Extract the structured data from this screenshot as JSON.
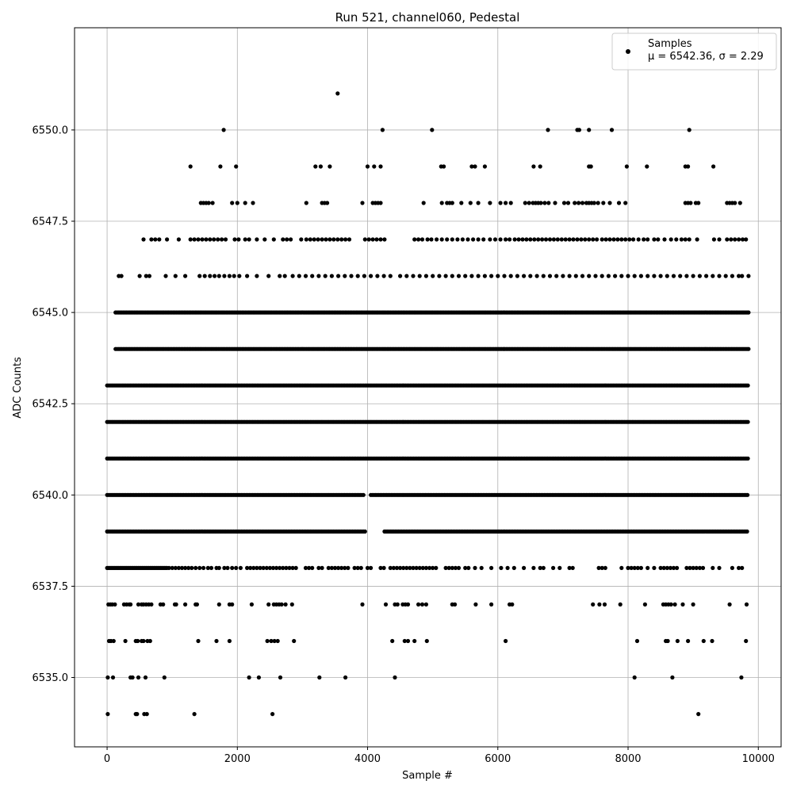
{
  "chart_data": {
    "type": "scatter",
    "title": "Run 521, channel060, Pedestal",
    "xlabel": "Sample #",
    "ylabel": "ADC Counts",
    "xlim": [
      -500,
      10350
    ],
    "ylim": [
      6533.1,
      6552.8
    ],
    "x_ticks": [
      0,
      2000,
      4000,
      6000,
      8000,
      10000
    ],
    "x_tick_labels": [
      "0",
      "2000",
      "4000",
      "6000",
      "8000",
      "10000"
    ],
    "y_ticks": [
      6535.0,
      6537.5,
      6540.0,
      6542.5,
      6545.0,
      6547.5,
      6550.0
    ],
    "y_tick_labels": [
      "6535.0",
      "6537.5",
      "6540.0",
      "6542.5",
      "6545.0",
      "6547.5",
      "6550.0"
    ],
    "grid": true,
    "legend_position": "top-right",
    "series": [
      {
        "name": "Samples",
        "marker_color": "#000000",
        "stats_label": "μ = 6542.36, σ = 2.29",
        "n_samples": 9850,
        "points": {
          "6534": [
            10,
            440,
            460,
            570,
            610,
            1340,
            2540,
            9080
          ],
          "6535": [
            10,
            90,
            360,
            390,
            480,
            590,
            880,
            2180,
            2330,
            2660,
            3260,
            3660,
            4420,
            8100,
            8680,
            9740
          ],
          "6536": [
            30,
            60,
            100,
            280,
            440,
            470,
            530,
            560,
            620,
            660,
            1400,
            1680,
            1880,
            2460,
            2520,
            2570,
            2620,
            2870,
            4380,
            4570,
            4620,
            4720,
            4910,
            6120,
            8140,
            8580,
            8610,
            8760,
            8920,
            9160,
            9290,
            9810
          ],
          "6537": [
            20,
            50,
            80,
            120,
            260,
            300,
            340,
            360,
            480,
            530,
            560,
            600,
            640,
            680,
            820,
            860,
            1040,
            1060,
            1200,
            1360,
            1380,
            1720,
            1880,
            1920,
            2220,
            2480,
            2560,
            2600,
            2640,
            2680,
            2740,
            2840,
            3920,
            4280,
            4420,
            4460,
            4540,
            4580,
            4620,
            4780,
            4840,
            4900,
            5300,
            5340,
            5660,
            5900,
            6180,
            6220,
            7460,
            7560,
            7640,
            7880,
            8260,
            8540,
            8580,
            8620,
            8660,
            8720,
            8840,
            9000,
            9560,
            9820
          ],
          "6538": [
            0,
            20,
            40,
            60,
            80,
            100,
            120,
            140,
            160,
            180,
            200,
            220,
            240,
            260,
            280,
            300,
            320,
            340,
            360,
            380,
            400,
            420,
            440,
            460,
            480,
            500,
            520,
            540,
            560,
            580,
            600,
            620,
            640,
            660,
            680,
            700,
            720,
            740,
            760,
            780,
            800,
            820,
            840,
            860,
            880,
            900,
            920,
            950,
            1000,
            1050,
            1100,
            1150,
            1200,
            1250,
            1300,
            1360,
            1420,
            1480,
            1550,
            1600,
            1680,
            1720,
            1800,
            1850,
            1920,
            1980,
            2050,
            2150,
            2200,
            2250,
            2300,
            2350,
            2400,
            2450,
            2500,
            2550,
            2600,
            2650,
            2700,
            2750,
            2800,
            2850,
            2900,
            3050,
            3100,
            3150,
            3250,
            3300,
            3400,
            3450,
            3500,
            3550,
            3600,
            3650,
            3700,
            3800,
            3850,
            3900,
            4000,
            4050,
            4200,
            4250,
            4350,
            4400,
            4450,
            4500,
            4550,
            4600,
            4650,
            4700,
            4750,
            4800,
            4850,
            4900,
            4950,
            5000,
            5050,
            5200,
            5250,
            5300,
            5350,
            5400,
            5500,
            5550,
            5650,
            5750,
            5900,
            6050,
            6150,
            6250,
            6400,
            6550,
            6650,
            6700,
            6850,
            6950,
            7100,
            7150,
            7550,
            7600,
            7650,
            7900,
            8000,
            8050,
            8100,
            8150,
            8200,
            8300,
            8400,
            8500,
            8550,
            8600,
            8650,
            8700,
            8750,
            8900,
            8950,
            9000,
            9050,
            9100,
            9150,
            9300,
            9400,
            9600,
            9700,
            9750
          ],
          "6546": [
            180,
            220,
            500,
            600,
            650,
            900,
            1050,
            1200,
            1420,
            1500,
            1580,
            1650,
            1720,
            1800,
            1880,
            1950,
            2030,
            2150,
            2300,
            2480,
            2650,
            2730,
            2850,
            2950,
            3050,
            3150,
            3250,
            3350,
            3450,
            3550,
            3650,
            3750,
            3850,
            3950,
            4050,
            4150,
            4250,
            4350,
            4500,
            4600,
            4700,
            4800,
            4900,
            5000,
            5100,
            5200,
            5300,
            5400,
            5500,
            5600,
            5700,
            5800,
            5900,
            6000,
            6100,
            6200,
            6300,
            6400,
            6500,
            6600,
            6700,
            6800,
            6900,
            7000,
            7100,
            7200,
            7300,
            7400,
            7500,
            7600,
            7700,
            7800,
            7900,
            8000,
            8100,
            8200,
            8300,
            8400,
            8500,
            8600,
            8700,
            8800,
            8900,
            9000,
            9100,
            9200,
            9300,
            9400,
            9500,
            9600,
            9700,
            9750,
            9850
          ],
          "6547": [
            560,
            680,
            740,
            800,
            920,
            1100,
            1280,
            1340,
            1400,
            1460,
            1520,
            1580,
            1640,
            1700,
            1760,
            1820,
            1960,
            2020,
            2120,
            2180,
            2300,
            2420,
            2560,
            2700,
            2760,
            2820,
            2980,
            3060,
            3120,
            3180,
            3240,
            3300,
            3360,
            3420,
            3480,
            3540,
            3600,
            3660,
            3720,
            3960,
            4020,
            4080,
            4140,
            4200,
            4260,
            4720,
            4780,
            4840,
            4920,
            4980,
            5060,
            5140,
            5220,
            5300,
            5380,
            5460,
            5540,
            5620,
            5700,
            5780,
            5880,
            5960,
            6040,
            6120,
            6180,
            6260,
            6320,
            6380,
            6440,
            6500,
            6560,
            6620,
            6680,
            6740,
            6800,
            6860,
            6920,
            6980,
            7040,
            7100,
            7160,
            7220,
            7280,
            7340,
            7400,
            7460,
            7520,
            7600,
            7660,
            7720,
            7780,
            7840,
            7900,
            7960,
            8020,
            8080,
            8160,
            8240,
            8300,
            8400,
            8460,
            8560,
            8660,
            8740,
            8820,
            8880,
            8940,
            9060,
            9320,
            9400,
            9520,
            9580,
            9640,
            9700,
            9760,
            9810
          ],
          "6548": [
            1440,
            1480,
            1520,
            1560,
            1620,
            1920,
            2000,
            2120,
            2240,
            3060,
            3300,
            3340,
            3380,
            3920,
            4080,
            4120,
            4160,
            4200,
            4860,
            5140,
            5220,
            5260,
            5300,
            5440,
            5580,
            5700,
            5880,
            6040,
            6120,
            6200,
            6420,
            6480,
            6540,
            6580,
            6620,
            6660,
            6720,
            6780,
            6880,
            7020,
            7080,
            7180,
            7240,
            7300,
            7360,
            7400,
            7440,
            7480,
            7540,
            7620,
            7720,
            7860,
            7960,
            8880,
            8920,
            8960,
            9040,
            9080,
            9520,
            9560,
            9600,
            9640,
            9720
          ],
          "6549": [
            1280,
            1740,
            1980,
            3200,
            3280,
            3420,
            4000,
            4100,
            4200,
            5130,
            5170,
            5600,
            5650,
            5800,
            6550,
            6650,
            7400,
            7430,
            7980,
            8290,
            8880,
            8920,
            9310
          ],
          "6550": [
            1790,
            4230,
            4990,
            6770,
            7220,
            7250,
            7400,
            7750,
            8940
          ],
          "6551": [
            3540
          ]
        },
        "dense_levels": {
          "6539": [
            [
              0,
              3960
            ],
            [
              4260,
              9850
            ]
          ],
          "6540": [
            [
              0,
              3950
            ],
            [
              4050,
              9850
            ]
          ],
          "6541": [
            [
              0,
              9850
            ]
          ],
          "6542": [
            [
              0,
              9850
            ]
          ],
          "6543": [
            [
              0,
              9850
            ]
          ],
          "6544": [
            [
              130,
              9850
            ]
          ],
          "6545": [
            [
              130,
              9850
            ]
          ]
        }
      }
    ]
  }
}
